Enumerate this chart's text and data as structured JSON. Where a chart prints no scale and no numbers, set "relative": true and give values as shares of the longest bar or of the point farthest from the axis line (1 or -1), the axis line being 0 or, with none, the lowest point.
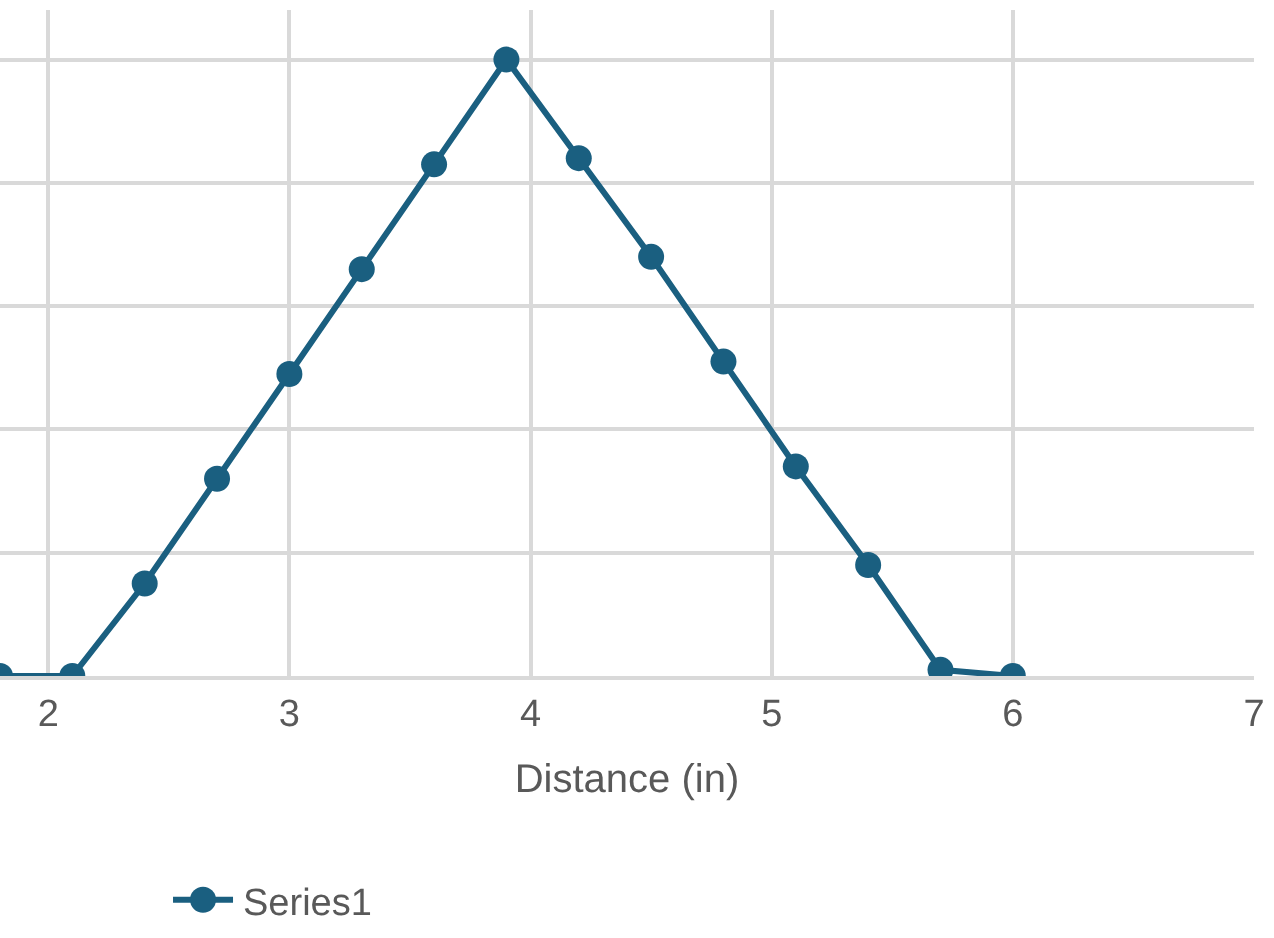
{
  "chart_data": {
    "type": "line",
    "relative": true,
    "xlabel": "Distance (in)",
    "x": [
      1.8,
      2.1,
      2.4,
      2.7,
      3.0,
      3.3,
      3.6,
      3.9,
      4.2,
      4.5,
      4.8,
      5.1,
      5.4,
      5.7,
      6.0
    ],
    "series": [
      {
        "name": "Series1",
        "color": "#1a5f80",
        "values": [
          0,
          0,
          0.15,
          0.32,
          0.49,
          0.66,
          0.83,
          1,
          0.84,
          0.68,
          0.51,
          0.34,
          0.18,
          0.01,
          0
        ]
      }
    ],
    "xlim": [
      1.8,
      7
    ],
    "xticks": [
      2,
      3,
      4,
      5,
      6,
      7
    ],
    "grid": true,
    "legend": "bottom",
    "marker": "circle",
    "line_style": "solid"
  }
}
